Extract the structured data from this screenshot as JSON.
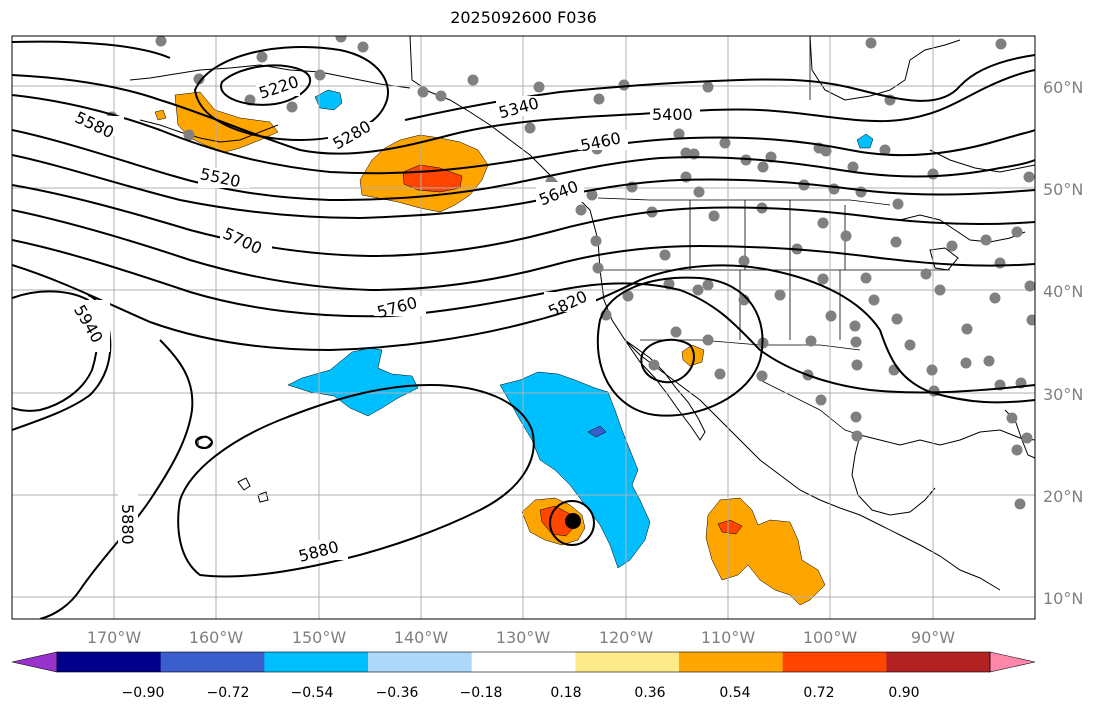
{
  "title": "2025092600 F036",
  "latitude_labels": [
    "60°N",
    "50°N",
    "40°N",
    "30°N",
    "20°N",
    "10°N"
  ],
  "longitude_labels": [
    "170°W",
    "160°W",
    "150°W",
    "140°W",
    "130°W",
    "120°W",
    "110°W",
    "100°W",
    "90°W"
  ],
  "contour_labels": [
    "5220",
    "5280",
    "5340",
    "5400",
    "5460",
    "5520",
    "5580",
    "5640",
    "5700",
    "5760",
    "5820",
    "5880",
    "5880",
    "5940"
  ],
  "colorbar": {
    "tick_labels": [
      "−0.90",
      "−0.72",
      "−0.54",
      "−0.36",
      "−0.18",
      "0.18",
      "0.36",
      "0.54",
      "0.72",
      "0.90"
    ],
    "colors": [
      "#9932cc",
      "#00008b",
      "#3a5fcd",
      "#00bfff",
      "#add8f9",
      "#ffffff",
      "#fdeb8a",
      "#ffa500",
      "#ff4500",
      "#b22222",
      "#ff88aa"
    ]
  },
  "fill_colors": {
    "orange": "#ffa500",
    "red_orange": "#ff4500",
    "sky_blue": "#00bfff",
    "blue": "#3a5fcd",
    "station_gray": "#808080"
  }
}
